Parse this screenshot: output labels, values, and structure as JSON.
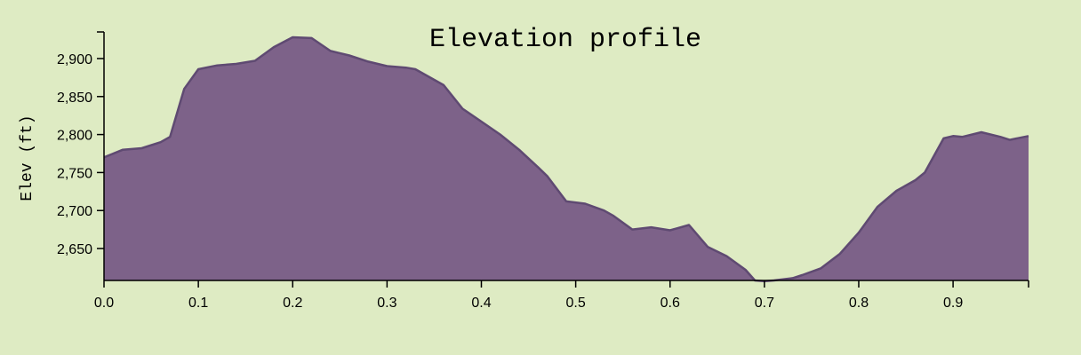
{
  "colors": {
    "background": "#deebc3",
    "area_fill": "#7d6289",
    "area_stroke": "#5f4a72",
    "axis": "#000000"
  },
  "chart_data": {
    "type": "area",
    "title": "Elevation profile",
    "xlabel": "",
    "ylabel": "Elev (ft)",
    "xlim": [
      0.0,
      0.98
    ],
    "ylim": [
      2608,
      2935
    ],
    "x_ticks": [
      0.0,
      0.1,
      0.2,
      0.3,
      0.4,
      0.5,
      0.6,
      0.7,
      0.8,
      0.9
    ],
    "x_tick_labels": [
      "0.0",
      "0.1",
      "0.2",
      "0.3",
      "0.4",
      "0.5",
      "0.6",
      "0.7",
      "0.8",
      "0.9"
    ],
    "y_ticks": [
      2650,
      2700,
      2750,
      2800,
      2850,
      2900
    ],
    "y_tick_labels": [
      "2,650",
      "2,700",
      "2,750",
      "2,800",
      "2,850",
      "2,900"
    ],
    "grid": false,
    "series": [
      {
        "x": [
          0.0,
          0.02,
          0.04,
          0.06,
          0.07,
          0.085,
          0.1,
          0.12,
          0.14,
          0.16,
          0.18,
          0.2,
          0.22,
          0.24,
          0.26,
          0.28,
          0.3,
          0.32,
          0.33,
          0.36,
          0.38,
          0.4,
          0.42,
          0.44,
          0.46,
          0.47,
          0.49,
          0.51,
          0.53,
          0.54,
          0.56,
          0.58,
          0.6,
          0.62,
          0.64,
          0.66,
          0.68,
          0.69,
          0.7,
          0.71,
          0.73,
          0.74,
          0.76,
          0.78,
          0.8,
          0.82,
          0.84,
          0.86,
          0.87,
          0.89,
          0.9,
          0.91,
          0.93,
          0.95,
          0.96,
          0.98
        ],
        "values": [
          2770,
          2780,
          2782,
          2790,
          2797,
          2860,
          2886,
          2891,
          2893,
          2897,
          2915,
          2928,
          2927,
          2910,
          2904,
          2896,
          2890,
          2888,
          2886,
          2865,
          2834,
          2817,
          2800,
          2780,
          2757,
          2745,
          2712,
          2709,
          2700,
          2693,
          2675,
          2678,
          2674,
          2681,
          2652,
          2640,
          2622,
          2608,
          2607,
          2608,
          2611,
          2615,
          2624,
          2643,
          2671,
          2705,
          2726,
          2740,
          2750,
          2795,
          2798,
          2797,
          2803,
          2797,
          2793,
          2798
        ]
      }
    ]
  }
}
